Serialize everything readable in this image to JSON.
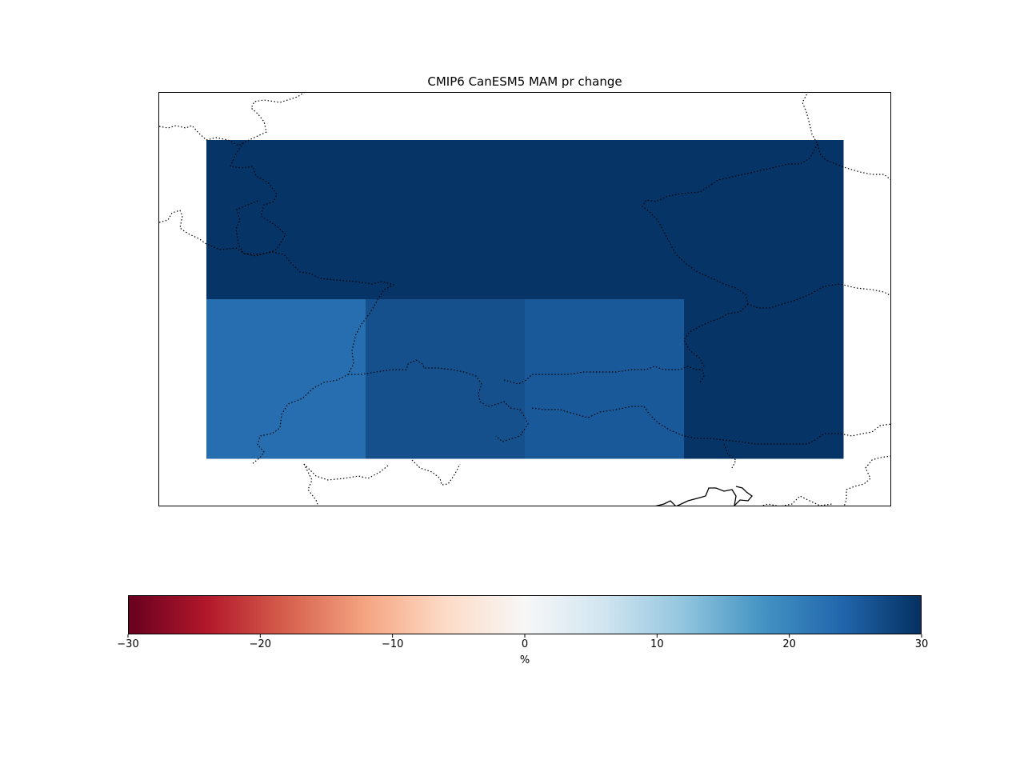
{
  "title": "CMIP6 CanESM5 MAM pr change",
  "map": {
    "grid_rows": 2,
    "grid_cols": 4,
    "cells": [
      {
        "row": 0,
        "col": 0,
        "value": 29.5
      },
      {
        "row": 0,
        "col": 1,
        "value": 29.5
      },
      {
        "row": 0,
        "col": 2,
        "value": 29.5
      },
      {
        "row": 0,
        "col": 3,
        "value": 29.5
      },
      {
        "row": 1,
        "col": 0,
        "value": 23.0
      },
      {
        "row": 1,
        "col": 1,
        "value": 26.5
      },
      {
        "row": 1,
        "col": 2,
        "value": 25.5
      },
      {
        "row": 1,
        "col": 3,
        "value": 29.5
      }
    ],
    "coastline_color": "#000000",
    "border_style": "dotted"
  },
  "colorbar": {
    "cmap": "RdBu",
    "vmin": -30,
    "vmax": 30,
    "ticks": [
      {
        "value": -30,
        "label": "−30"
      },
      {
        "value": -20,
        "label": "−20"
      },
      {
        "value": -10,
        "label": "−10"
      },
      {
        "value": 0,
        "label": "0"
      },
      {
        "value": 10,
        "label": "10"
      },
      {
        "value": 20,
        "label": "20"
      },
      {
        "value": 30,
        "label": "30"
      }
    ],
    "label": "%",
    "stops": [
      "#67001f",
      "#b2182b",
      "#d6604d",
      "#f4a582",
      "#fddbc7",
      "#f7f7f7",
      "#d1e5f0",
      "#92c5de",
      "#4393c3",
      "#2166ac",
      "#053061"
    ]
  }
}
